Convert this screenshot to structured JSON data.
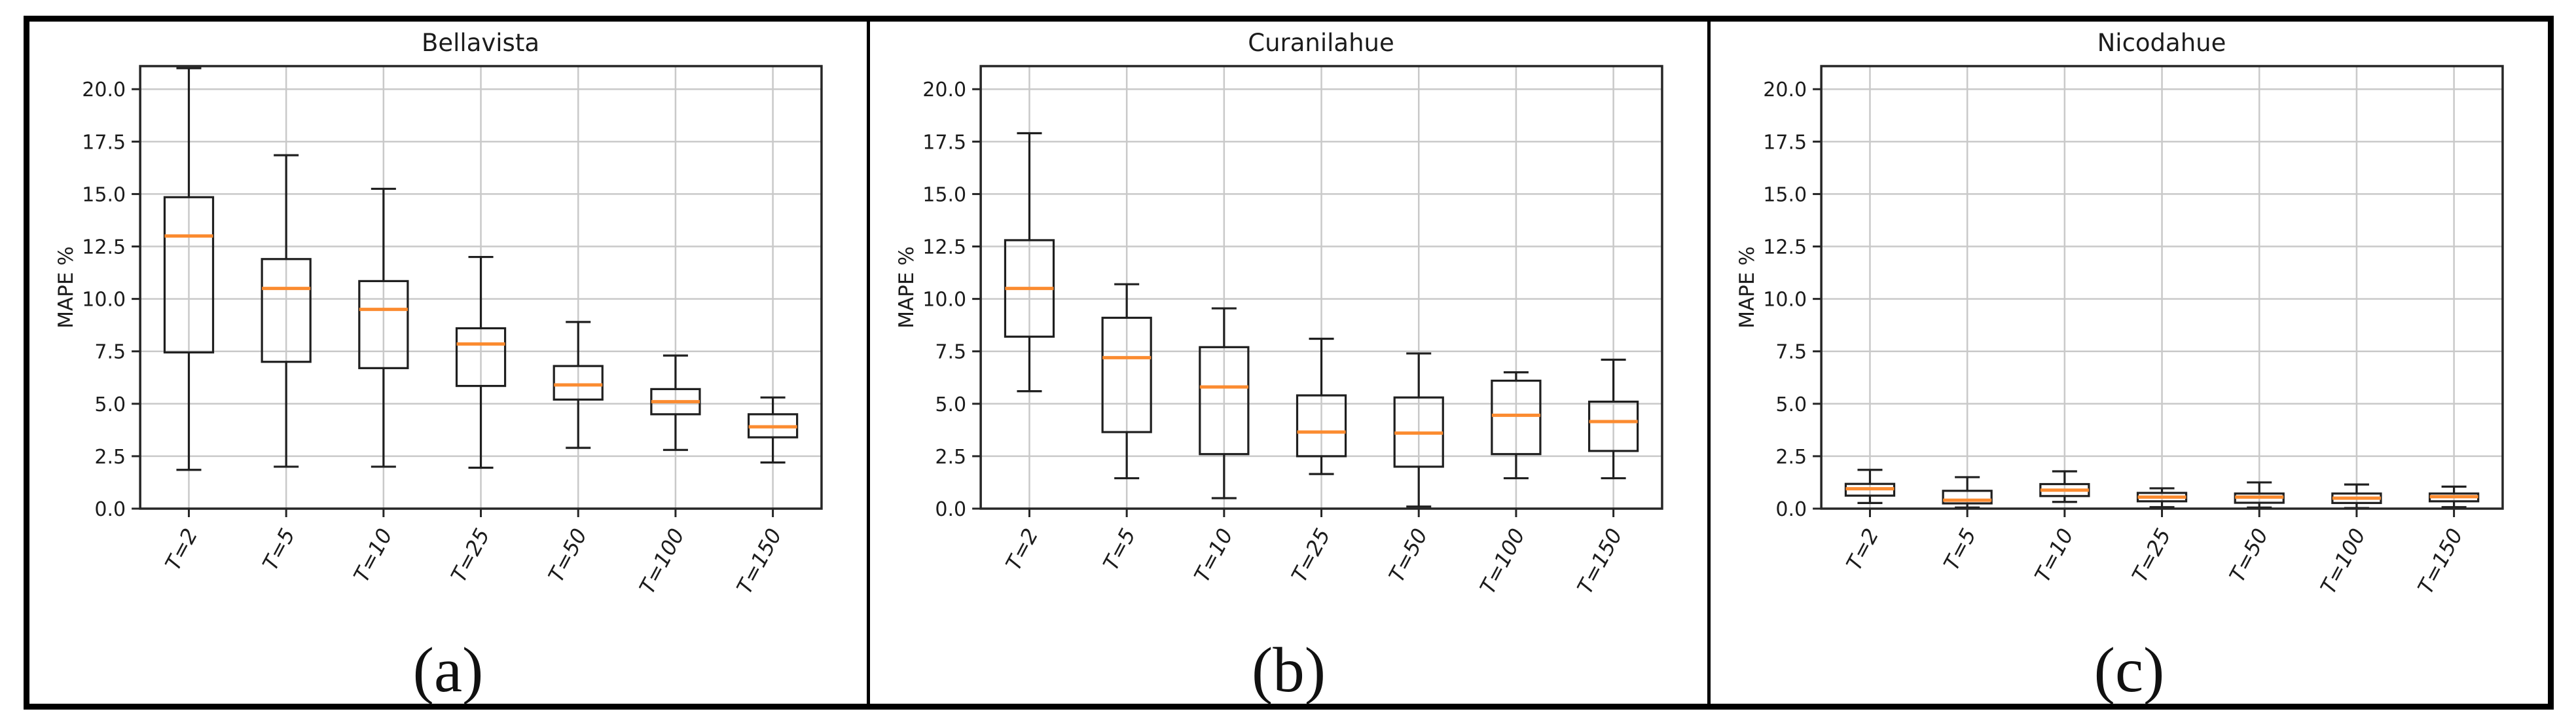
{
  "figure": {
    "ylabel": "MAPE %",
    "categories": [
      "T=2",
      "T=5",
      "T=10",
      "T=25",
      "T=50",
      "T=100",
      "T=150"
    ],
    "yticks": [
      0.0,
      2.5,
      5.0,
      7.5,
      10.0,
      12.5,
      15.0,
      17.5,
      20.0
    ],
    "ylim": [
      0,
      21.1
    ],
    "grid": true,
    "colors": {
      "median": "#fb8b30",
      "box_line": "#1f1f1f",
      "spine": "#262626",
      "grid_line": "#c9c9c9",
      "text": "#1c1c1c",
      "frame_border": "#000000",
      "background": "#ffffff"
    }
  },
  "chart_data": [
    {
      "type": "box",
      "title": "Bellavista",
      "panel_label": "(a)",
      "xlabel": "",
      "ylabel": "MAPE %",
      "ylim": [
        0,
        21.1
      ],
      "categories": [
        "T=2",
        "T=5",
        "T=10",
        "T=25",
        "T=50",
        "T=100",
        "T=150"
      ],
      "boxes": [
        {
          "whislo": 1.85,
          "q1": 7.45,
          "med": 13.0,
          "q3": 14.85,
          "whishi": 21.0
        },
        {
          "whislo": 2.0,
          "q1": 7.0,
          "med": 10.5,
          "q3": 11.9,
          "whishi": 16.85
        },
        {
          "whislo": 2.0,
          "q1": 6.7,
          "med": 9.5,
          "q3": 10.85,
          "whishi": 15.25
        },
        {
          "whislo": 1.95,
          "q1": 5.85,
          "med": 7.85,
          "q3": 8.6,
          "whishi": 12.0
        },
        {
          "whislo": 2.9,
          "q1": 5.2,
          "med": 5.9,
          "q3": 6.8,
          "whishi": 8.9
        },
        {
          "whislo": 2.8,
          "q1": 4.5,
          "med": 5.1,
          "q3": 5.7,
          "whishi": 7.3
        },
        {
          "whislo": 2.2,
          "q1": 3.4,
          "med": 3.9,
          "q3": 4.5,
          "whishi": 5.3
        }
      ]
    },
    {
      "type": "box",
      "title": "Curanilahue",
      "panel_label": "(b)",
      "xlabel": "",
      "ylabel": "MAPE %",
      "ylim": [
        0,
        21.1
      ],
      "categories": [
        "T=2",
        "T=5",
        "T=10",
        "T=25",
        "T=50",
        "T=100",
        "T=150"
      ],
      "boxes": [
        {
          "whislo": 5.6,
          "q1": 8.2,
          "med": 10.5,
          "q3": 12.8,
          "whishi": 17.9
        },
        {
          "whislo": 1.45,
          "q1": 3.65,
          "med": 7.2,
          "q3": 9.1,
          "whishi": 10.7
        },
        {
          "whislo": 0.5,
          "q1": 2.6,
          "med": 5.8,
          "q3": 7.7,
          "whishi": 9.55
        },
        {
          "whislo": 1.65,
          "q1": 2.5,
          "med": 3.65,
          "q3": 5.4,
          "whishi": 8.1
        },
        {
          "whislo": 0.1,
          "q1": 2.0,
          "med": 3.6,
          "q3": 5.3,
          "whishi": 7.4
        },
        {
          "whislo": 1.45,
          "q1": 2.6,
          "med": 4.45,
          "q3": 6.1,
          "whishi": 6.5
        },
        {
          "whislo": 1.45,
          "q1": 2.75,
          "med": 4.15,
          "q3": 5.1,
          "whishi": 7.1
        }
      ]
    },
    {
      "type": "box",
      "title": "Nicodahue",
      "panel_label": "(c)",
      "xlabel": "",
      "ylabel": "MAPE %",
      "ylim": [
        0,
        21.1
      ],
      "categories": [
        "T=2",
        "T=5",
        "T=10",
        "T=25",
        "T=50",
        "T=100",
        "T=150"
      ],
      "boxes": [
        {
          "whislo": 0.27,
          "q1": 0.62,
          "med": 0.95,
          "q3": 1.18,
          "whishi": 1.85
        },
        {
          "whislo": 0.05,
          "q1": 0.25,
          "med": 0.4,
          "q3": 0.85,
          "whishi": 1.5
        },
        {
          "whislo": 0.32,
          "q1": 0.6,
          "med": 0.88,
          "q3": 1.17,
          "whishi": 1.78
        },
        {
          "whislo": 0.07,
          "q1": 0.35,
          "med": 0.55,
          "q3": 0.75,
          "whishi": 0.97
        },
        {
          "whislo": 0.05,
          "q1": 0.28,
          "med": 0.55,
          "q3": 0.72,
          "whishi": 1.25
        },
        {
          "whislo": 0.03,
          "q1": 0.27,
          "med": 0.5,
          "q3": 0.72,
          "whishi": 1.15
        },
        {
          "whislo": 0.07,
          "q1": 0.35,
          "med": 0.57,
          "q3": 0.72,
          "whishi": 1.05
        }
      ]
    }
  ]
}
